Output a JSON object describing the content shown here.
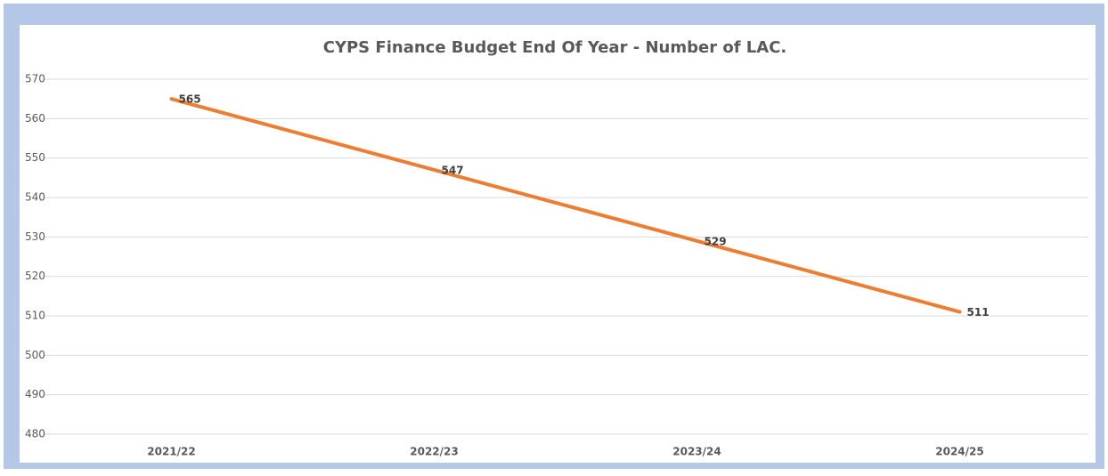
{
  "chart_data": {
    "type": "line",
    "title": "CYPS Finance Budget End Of Year - Number of LAC.",
    "categories": [
      "2021/22",
      "2022/23",
      "2023/24",
      "2024/25"
    ],
    "series": [
      {
        "name": "Number of LAC",
        "color": "#ed7d31",
        "values": [
          565,
          547,
          529,
          511
        ]
      }
    ],
    "ylim": [
      480,
      570
    ],
    "yticks": [
      480,
      490,
      500,
      510,
      520,
      530,
      540,
      550,
      560,
      570
    ],
    "grid": true
  }
}
